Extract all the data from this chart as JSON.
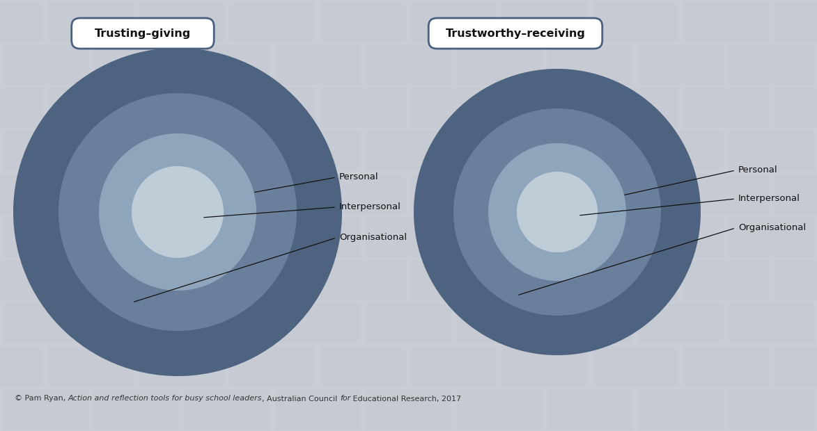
{
  "background_color": "#c9cdd5",
  "title1": "Trusting–giving",
  "title2": "Trustworthy–receiving",
  "labels": [
    "Personal",
    "Interpersonal",
    "Organisational"
  ],
  "left_colors": [
    "#4e6380",
    "#6a7f9c",
    "#8fa5bc",
    "#bfcdd9"
  ],
  "right_colors": [
    "#4e6380",
    "#6a7f9c",
    "#8fa5bc",
    "#bfcdd9"
  ],
  "edge_color": "#3b5270",
  "label_fontsize": 9.5,
  "title_fontsize": 11.5,
  "footer_normal1": "© Pam Ryan, ",
  "footer_italic1": "Action and reflection tools for busy school leaders",
  "footer_normal2": ", Australian Council ",
  "footer_italic2": "for",
  "footer_normal3": " Educational Research, 2017"
}
